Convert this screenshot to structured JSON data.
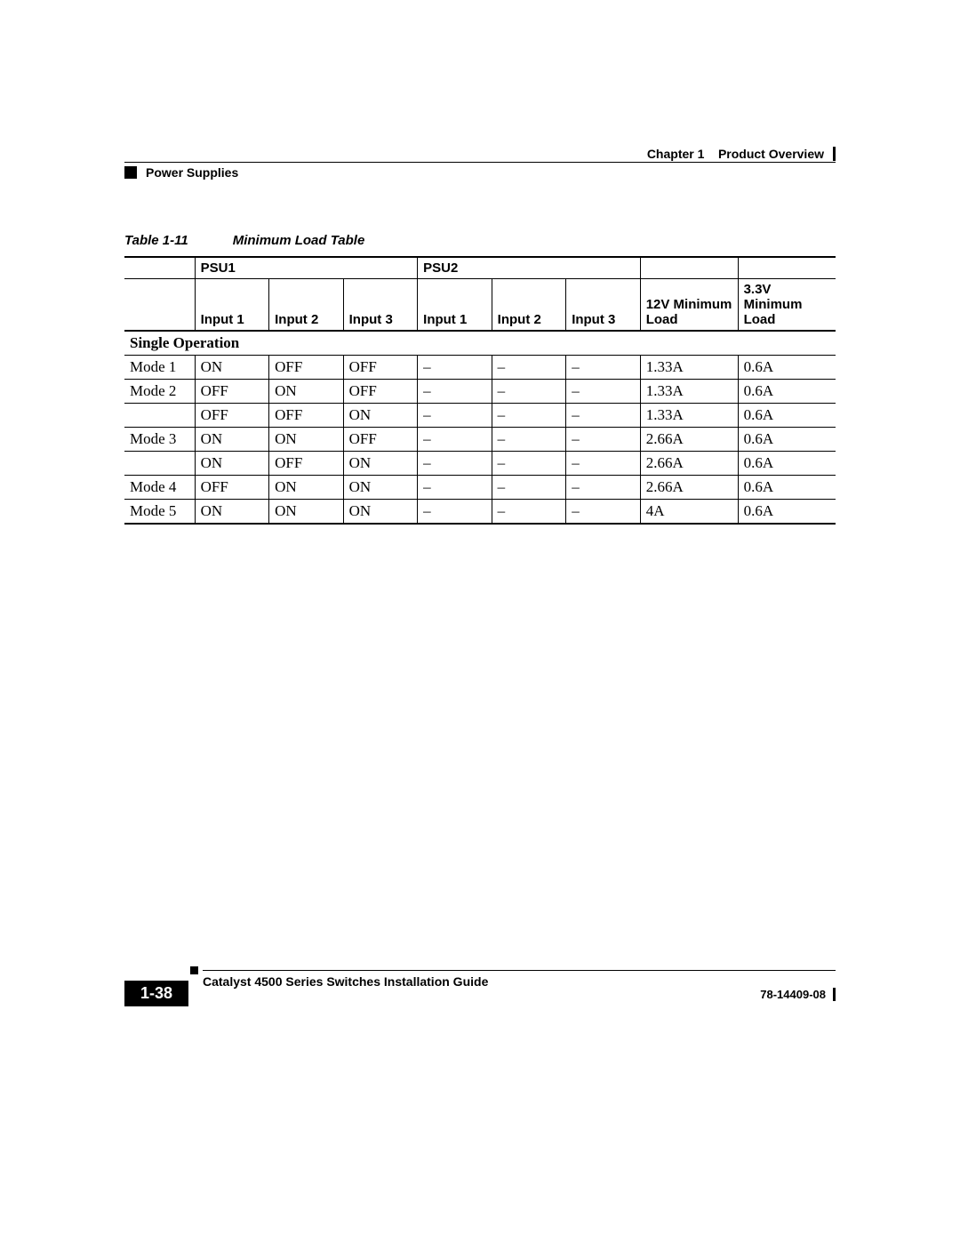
{
  "header": {
    "chapter": "Chapter 1",
    "chapter_title": "Product Overview",
    "section": "Power Supplies"
  },
  "caption": {
    "number": "Table 1-11",
    "title": "Minimum Load Table"
  },
  "table": {
    "group_headers": {
      "blank": "",
      "psu1": "PSU1",
      "psu2": "PSU2",
      "g3": "",
      "g4": ""
    },
    "col_headers": {
      "c0": "",
      "c1": "Input 1",
      "c2": "Input 2",
      "c3": "Input 3",
      "c4": "Input 1",
      "c5": "Input 2",
      "c6": "Input 3",
      "c7": "12V Minimum Load",
      "c8": "3.3V Minimum Load"
    },
    "section_label": "Single Operation",
    "rows": [
      {
        "mode": "Mode 1",
        "p1i1": "ON",
        "p1i2": "OFF",
        "p1i3": "OFF",
        "p2i1": "–",
        "p2i2": "–",
        "p2i3": "–",
        "v12": "1.33A",
        "v33": "0.6A"
      },
      {
        "mode": "Mode 2",
        "p1i1": "OFF",
        "p1i2": "ON",
        "p1i3": "OFF",
        "p2i1": "–",
        "p2i2": "–",
        "p2i3": "–",
        "v12": "1.33A",
        "v33": "0.6A"
      },
      {
        "mode": "",
        "p1i1": "OFF",
        "p1i2": "OFF",
        "p1i3": "ON",
        "p2i1": "–",
        "p2i2": "–",
        "p2i3": "–",
        "v12": "1.33A",
        "v33": "0.6A"
      },
      {
        "mode": "Mode 3",
        "p1i1": "ON",
        "p1i2": "ON",
        "p1i3": "OFF",
        "p2i1": "–",
        "p2i2": "–",
        "p2i3": "–",
        "v12": "2.66A",
        "v33": "0.6A"
      },
      {
        "mode": "",
        "p1i1": "ON",
        "p1i2": "OFF",
        "p1i3": "ON",
        "p2i1": "–",
        "p2i2": "–",
        "p2i3": "–",
        "v12": "2.66A",
        "v33": "0.6A"
      },
      {
        "mode": "Mode 4",
        "p1i1": "OFF",
        "p1i2": "ON",
        "p1i3": "ON",
        "p2i1": "–",
        "p2i2": "–",
        "p2i3": "–",
        "v12": "2.66A",
        "v33": "0.6A"
      },
      {
        "mode": "Mode 5",
        "p1i1": "ON",
        "p1i2": "ON",
        "p1i3": "ON",
        "p2i1": "–",
        "p2i2": "–",
        "p2i3": "–",
        "v12": "4A",
        "v33": "0.6A"
      }
    ]
  },
  "footer": {
    "guide": "Catalyst 4500 Series Switches Installation Guide",
    "page": "1-38",
    "docnum": "78-14409-08"
  }
}
